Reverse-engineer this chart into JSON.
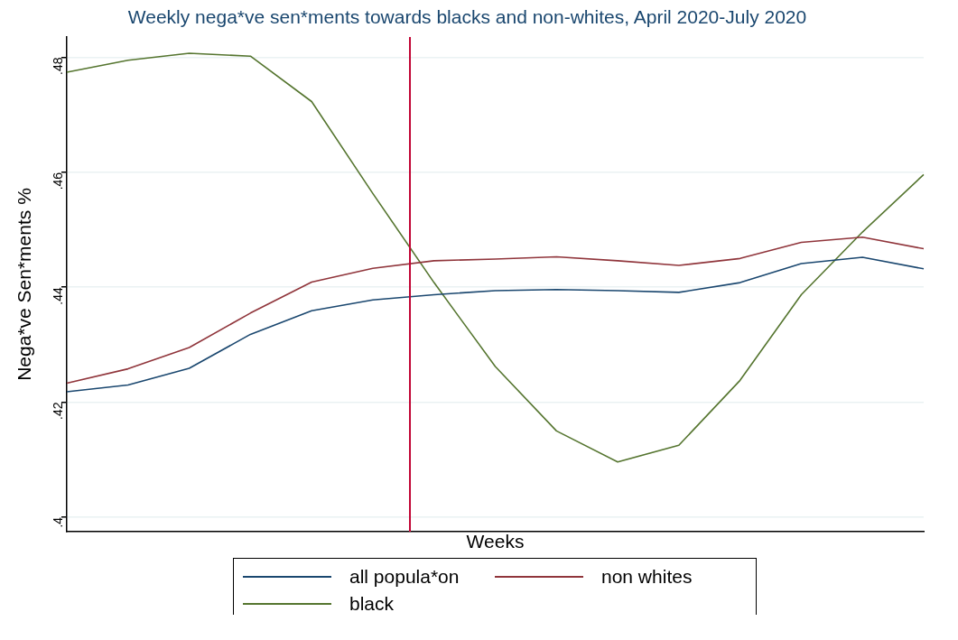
{
  "chart_data": {
    "type": "line",
    "title": "Weekly nega*ve sen*ments towards blacks and non-whites, April 2020-July 2020",
    "xlabel": "Weeks",
    "ylabel": "Nega*ve Sen*ments %",
    "categories": [
      null,
      null,
      null,
      null,
      null,
      null,
      null,
      null,
      null,
      null,
      null,
      null,
      null,
      null,
      null
    ],
    "ylim": [
      0.3975,
      0.4835
    ],
    "yticks": [
      {
        "value": 0.4,
        "label": ".4"
      },
      {
        "value": 0.42,
        "label": ".42"
      },
      {
        "value": 0.44,
        "label": ".44"
      },
      {
        "value": 0.46,
        "label": ".46"
      },
      {
        "value": 0.48,
        "label": ".48"
      }
    ],
    "tick_labels": "y",
    "grid": "y",
    "legend": "bottom",
    "line_style": "solid",
    "marker": "none",
    "series": [
      {
        "name": "all popula*on",
        "color": "#1a476f",
        "values": [
          0.4218,
          0.423,
          0.4259,
          0.4318,
          0.4359,
          0.4378,
          0.4387,
          0.4394,
          0.4396,
          0.4394,
          0.4391,
          0.4408,
          0.4441,
          0.4452,
          0.4432
        ]
      },
      {
        "name": "non whites",
        "color": "#90353b",
        "values": [
          0.4233,
          0.4258,
          0.4295,
          0.4355,
          0.4409,
          0.4433,
          0.4446,
          0.4449,
          0.4453,
          0.4446,
          0.4438,
          0.445,
          0.4478,
          0.4487,
          0.4467
        ]
      },
      {
        "name": "black",
        "color": "#55752f",
        "values": [
          0.4774,
          0.4795,
          0.4807,
          0.4802,
          0.4723,
          0.4563,
          0.4408,
          0.4262,
          0.415,
          0.4096,
          0.4125,
          0.4238,
          0.4387,
          0.4496,
          0.4596
        ]
      }
    ]
  }
}
